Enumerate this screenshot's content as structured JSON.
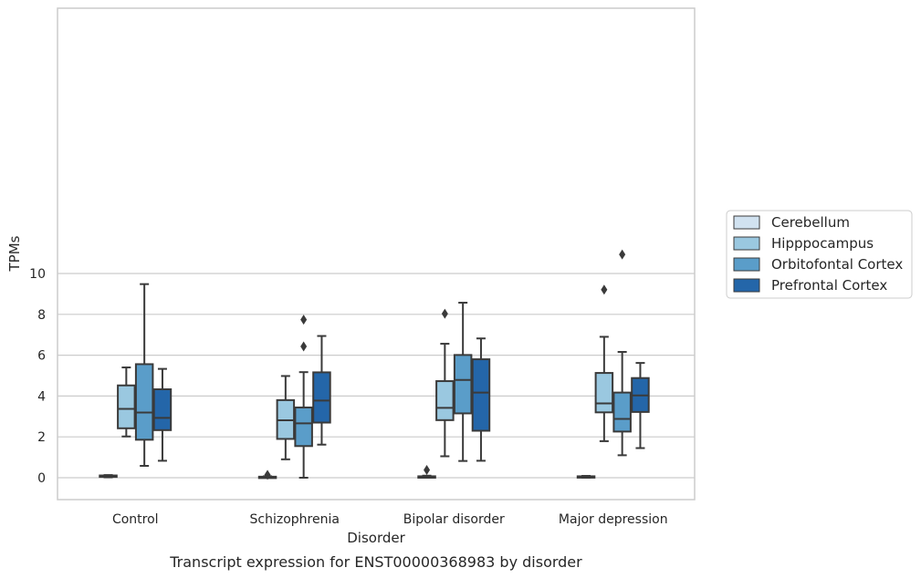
{
  "chart_data": {
    "type": "boxplot",
    "caption": "Transcript expression for ENST00000368983 by disorder",
    "xlabel": "Disorder",
    "ylabel": "TPMs",
    "ylim": [
      -0.5,
      11.5
    ],
    "y_ticks": [
      0,
      2,
      4,
      6,
      8,
      10
    ],
    "grid": "horizontal",
    "legend_position": "right",
    "categories": [
      "Control",
      "Schizophrenia",
      "Bipolar disorder",
      "Major depression"
    ],
    "series": [
      {
        "name": "Cerebellum",
        "color": "#d1e2f0",
        "boxes": [
          {
            "whislo": 0.02,
            "q1": 0.04,
            "med": 0.08,
            "q3": 0.11,
            "whishi": 0.13,
            "fliers": []
          },
          {
            "whislo": 0.0,
            "q1": 0.0,
            "med": 0.02,
            "q3": 0.05,
            "whishi": 0.07,
            "fliers": [
              0.14
            ]
          },
          {
            "whislo": 0.0,
            "q1": 0.0,
            "med": 0.02,
            "q3": 0.07,
            "whishi": 0.1,
            "fliers": [
              0.38
            ]
          },
          {
            "whislo": 0.0,
            "q1": 0.01,
            "med": 0.03,
            "q3": 0.07,
            "whishi": 0.09,
            "fliers": []
          }
        ]
      },
      {
        "name": "Hipppocampus",
        "color": "#9ac8e0",
        "boxes": [
          {
            "whislo": 2.02,
            "q1": 2.42,
            "med": 3.37,
            "q3": 4.52,
            "whishi": 5.4,
            "fliers": []
          },
          {
            "whislo": 0.9,
            "q1": 1.9,
            "med": 2.81,
            "q3": 3.8,
            "whishi": 4.98,
            "fliers": []
          },
          {
            "whislo": 1.05,
            "q1": 2.82,
            "med": 3.42,
            "q3": 4.73,
            "whishi": 6.56,
            "fliers": [
              8.03
            ]
          },
          {
            "whislo": 1.79,
            "q1": 3.2,
            "med": 3.64,
            "q3": 5.13,
            "whishi": 6.9,
            "fliers": [
              9.21
            ]
          }
        ]
      },
      {
        "name": "Orbitofontal Cortex",
        "color": "#5a9dc9",
        "boxes": [
          {
            "whislo": 0.58,
            "q1": 1.86,
            "med": 3.19,
            "q3": 5.56,
            "whishi": 9.48,
            "fliers": []
          },
          {
            "whislo": 0.0,
            "q1": 1.55,
            "med": 2.66,
            "q3": 3.44,
            "whishi": 5.17,
            "fliers": [
              6.43,
              7.74
            ]
          },
          {
            "whislo": 0.82,
            "q1": 3.15,
            "med": 4.79,
            "q3": 6.01,
            "whishi": 8.57,
            "fliers": []
          },
          {
            "whislo": 1.1,
            "q1": 2.26,
            "med": 2.88,
            "q3": 4.17,
            "whishi": 6.16,
            "fliers": [
              10.93
            ]
          }
        ]
      },
      {
        "name": "Prefrontal Cortex",
        "color": "#2466a9",
        "boxes": [
          {
            "whislo": 0.83,
            "q1": 2.33,
            "med": 2.93,
            "q3": 4.33,
            "whishi": 5.33,
            "fliers": []
          },
          {
            "whislo": 1.62,
            "q1": 2.7,
            "med": 3.78,
            "q3": 5.16,
            "whishi": 6.94,
            "fliers": []
          },
          {
            "whislo": 0.83,
            "q1": 2.3,
            "med": 4.17,
            "q3": 5.8,
            "whishi": 6.82,
            "fliers": []
          },
          {
            "whislo": 1.45,
            "q1": 3.22,
            "med": 4.03,
            "q3": 4.88,
            "whishi": 5.62,
            "fliers": []
          }
        ]
      }
    ]
  }
}
